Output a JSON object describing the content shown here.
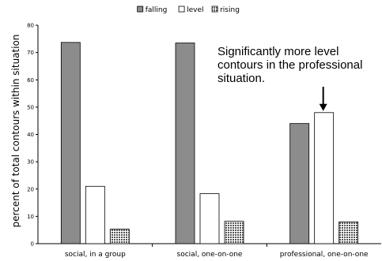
{
  "chart_data": {
    "type": "bar",
    "categories": [
      "social, in a group",
      "social, one-on-one",
      "professional, one-on-one"
    ],
    "series": [
      {
        "name": "falling",
        "values": [
          73.7,
          73.5,
          44
        ],
        "color": "#8c8c8c"
      },
      {
        "name": "level",
        "values": [
          21,
          18.3,
          48
        ],
        "color": "#ffffff"
      },
      {
        "name": "rising",
        "values": [
          5.3,
          8.2,
          8
        ]
      }
    ],
    "ylabel": "percent of total contours within situation",
    "xlabel": "",
    "ylim": [
      0,
      80
    ],
    "yticks": [
      "0",
      "10",
      "20",
      "30",
      "40",
      "50",
      "60",
      "70",
      "80"
    ],
    "grid": false,
    "legend_placement": "top-center",
    "annotation": {
      "lines": [
        "Significantly more level",
        "contours in the professional",
        "situation."
      ],
      "target_category": "professional, one-on-one",
      "target_series": "level"
    }
  }
}
